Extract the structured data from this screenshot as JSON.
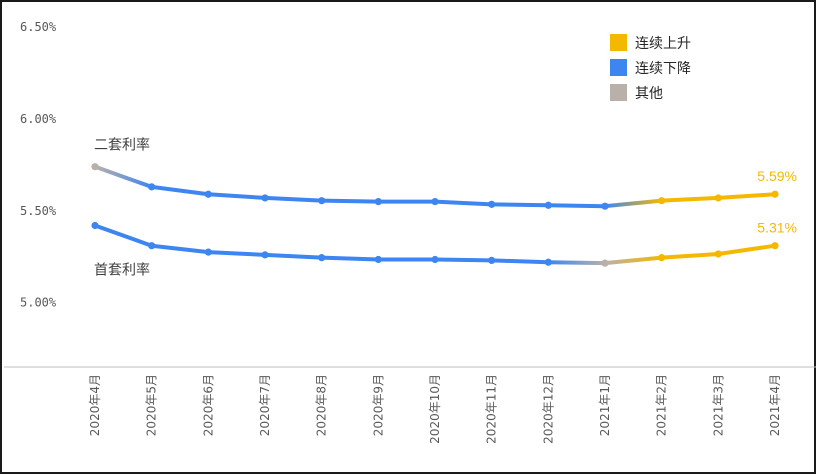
{
  "chart_data": {
    "type": "line",
    "categories": [
      "2020年4月",
      "2020年5月",
      "2020年6月",
      "2020年7月",
      "2020年8月",
      "2020年9月",
      "2020年10月",
      "2020年11月",
      "2020年12月",
      "2021年1月",
      "2021年2月",
      "2021年3月",
      "2021年4月"
    ],
    "y_ticks": [
      "5.00%",
      "5.50%",
      "6.00%",
      "6.50%"
    ],
    "ylim": [
      4.65,
      6.5
    ],
    "grid": false,
    "legend_position": "top-right",
    "legend": [
      {
        "label": "连续上升",
        "color": "#F5B800"
      },
      {
        "label": "连续下降",
        "color": "#3D86F2"
      },
      {
        "label": "其他",
        "color": "#B9B1A9"
      }
    ],
    "series": [
      {
        "name": "二套利率",
        "values": [
          5.74,
          5.63,
          5.59,
          5.57,
          5.555,
          5.55,
          5.55,
          5.535,
          5.53,
          5.525,
          5.555,
          5.57,
          5.59
        ],
        "status": [
          "other",
          "down",
          "down",
          "down",
          "down",
          "down",
          "down",
          "down",
          "down",
          "down",
          "up",
          "up",
          "up"
        ],
        "end_label": "5.59%"
      },
      {
        "name": "首套利率",
        "values": [
          5.42,
          5.31,
          5.275,
          5.26,
          5.245,
          5.235,
          5.235,
          5.23,
          5.22,
          5.215,
          5.245,
          5.265,
          5.31
        ],
        "status": [
          "down",
          "down",
          "down",
          "down",
          "down",
          "down",
          "down",
          "down",
          "down",
          "other",
          "up",
          "up",
          "up"
        ],
        "end_label": "5.31%"
      }
    ]
  }
}
